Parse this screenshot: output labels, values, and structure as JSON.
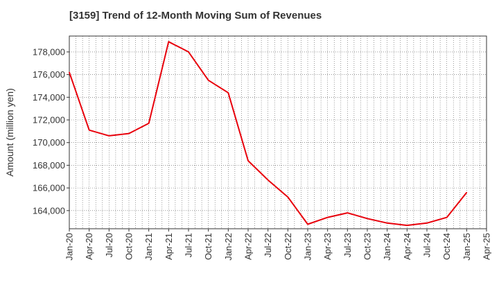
{
  "chart_data": {
    "type": "line",
    "title": "[3159]  Trend of 12-Month Moving Sum of Revenues",
    "xlabel": "",
    "ylabel": "Amount (million yen)",
    "ylim": [
      162400,
      179400
    ],
    "y_ticks": [
      164000,
      166000,
      168000,
      170000,
      172000,
      174000,
      176000,
      178000
    ],
    "y_tick_labels": [
      "164,000",
      "166,000",
      "168,000",
      "170,000",
      "172,000",
      "174,000",
      "176,000",
      "178,000"
    ],
    "x_tick_labels": [
      "Jan-20",
      "Apr-20",
      "Jul-20",
      "Oct-20",
      "Jan-21",
      "Apr-21",
      "Jul-21",
      "Oct-21",
      "Jan-22",
      "Apr-22",
      "Jul-22",
      "Oct-22",
      "Jan-23",
      "Apr-23",
      "Jul-23",
      "Oct-23",
      "Jan-24",
      "Apr-24",
      "Jul-24",
      "Oct-24",
      "Jan-25",
      "Apr-25"
    ],
    "grid": true,
    "series": [
      {
        "color": "#e8000b",
        "values": [
          176200,
          171100,
          170600,
          170800,
          171700,
          178900,
          178000,
          175500,
          174400,
          168400,
          166700,
          165200,
          162800,
          163400,
          163800,
          163300,
          162900,
          162700,
          162900,
          163400,
          165600
        ]
      }
    ]
  }
}
